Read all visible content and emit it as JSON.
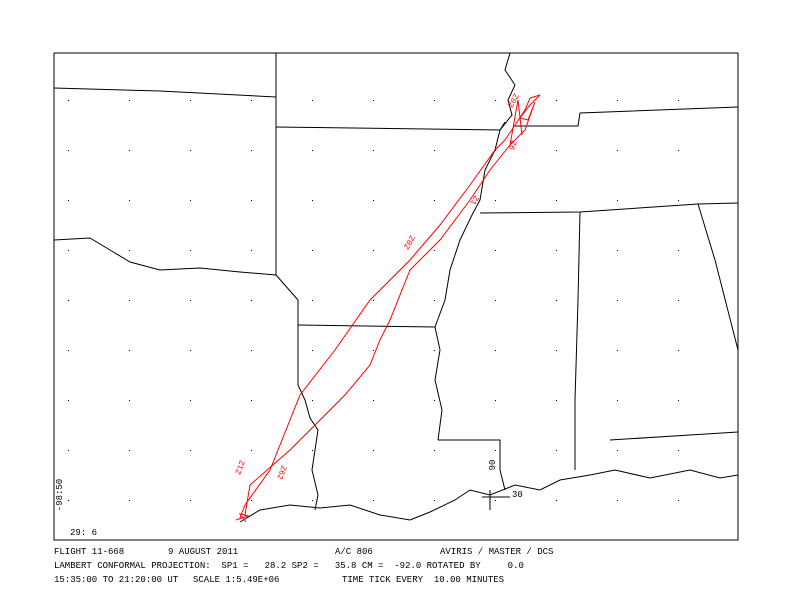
{
  "map": {
    "corner_labels": {
      "longitude": "-98:50",
      "latitude": "29: 6"
    },
    "grid_labels": {
      "longitude": "90",
      "latitude": "30"
    },
    "track_labels": [
      "Z12",
      "Z62",
      "Z0Z",
      "Z1",
      "Z0Z",
      "Z6"
    ]
  },
  "footer": {
    "line1": [
      "FLIGHT 11-668",
      "9 AUGUST 2011",
      "A/C 806",
      "AVIRIS / MASTER / DCS"
    ],
    "line2": "LAMBERT CONFORMAL PROJECTION:  SP1 =   28.2 SP2 =   35.8 CM =  -92.0 ROTATED BY     0.0",
    "line3": [
      "15:35:00 TO 21:20:00 UT",
      "SCALE 1:5.49E+06",
      "TIME TICK EVERY  10.00 MINUTES"
    ]
  }
}
